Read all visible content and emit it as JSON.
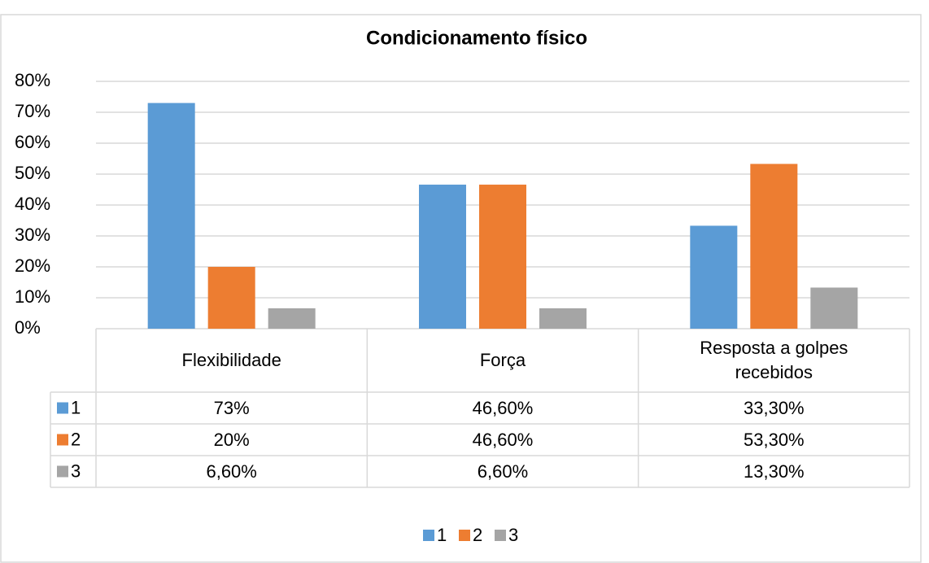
{
  "chart_data": {
    "type": "bar",
    "title": "Condicionamento físico",
    "categories": [
      "Flexibilidade",
      "Força",
      "Resposta a golpes recebidos"
    ],
    "series": [
      {
        "name": "1",
        "color": "#5b9bd5",
        "values": [
          73,
          46.6,
          33.3
        ],
        "value_labels": [
          "73%",
          "46,60%",
          "33,30%"
        ]
      },
      {
        "name": "2",
        "color": "#ed7d31",
        "values": [
          20,
          46.6,
          53.3
        ],
        "value_labels": [
          "20%",
          "46,60%",
          "53,30%"
        ]
      },
      {
        "name": "3",
        "color": "#a5a5a5",
        "values": [
          6.6,
          6.6,
          13.3
        ],
        "value_labels": [
          "6,60%",
          "6,60%",
          "13,30%"
        ]
      }
    ],
    "ylim": [
      0,
      80
    ],
    "yticks": [
      {
        "value": 0,
        "label": "0%"
      },
      {
        "value": 10,
        "label": "10%"
      },
      {
        "value": 20,
        "label": "20%"
      },
      {
        "value": 30,
        "label": "30%"
      },
      {
        "value": 40,
        "label": "40%"
      },
      {
        "value": 50,
        "label": "50%"
      },
      {
        "value": 60,
        "label": "60%"
      },
      {
        "value": 70,
        "label": "70%"
      },
      {
        "value": 80,
        "label": "80%"
      }
    ],
    "grid": true,
    "legend": "bottom"
  }
}
